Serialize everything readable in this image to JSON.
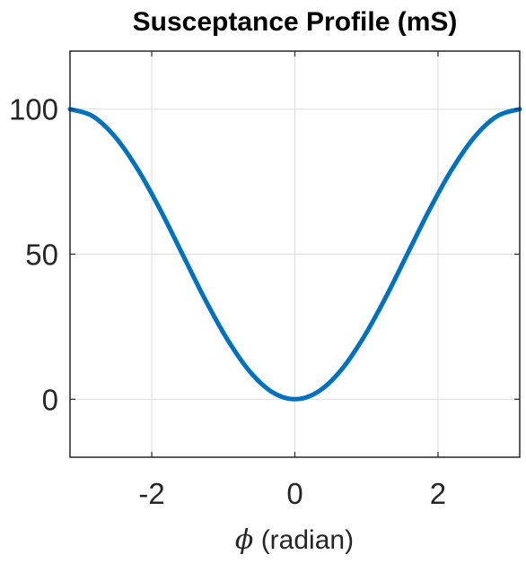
{
  "chart_data": {
    "type": "line",
    "title": "Susceptance Profile (mS)",
    "xlabel_symbol": "ϕ",
    "xlabel_text": " (radian)",
    "ylabel": "",
    "xlim": [
      -3.14159,
      3.14159
    ],
    "ylim": [
      -20,
      120
    ],
    "xticks": [
      -2,
      0,
      2
    ],
    "xtick_labels": [
      "-2",
      "0",
      "2"
    ],
    "yticks": [
      0,
      50,
      100
    ],
    "ytick_labels": [
      "0",
      "50",
      "100"
    ],
    "grid": true,
    "series": [
      {
        "color": "#0072BD",
        "x": [
          -3.1416,
          -2.8274,
          -2.5133,
          -2.1991,
          -1.885,
          -1.5708,
          -1.2566,
          -0.9425,
          -0.6283,
          -0.3142,
          0,
          0.3142,
          0.6283,
          0.9425,
          1.2566,
          1.5708,
          1.885,
          2.1991,
          2.5133,
          2.8274,
          3.1416
        ],
        "y": [
          100,
          97.6,
          90.5,
          79.4,
          65.5,
          50,
          34.5,
          20.6,
          9.5,
          2.4,
          0,
          2.4,
          9.5,
          20.6,
          34.5,
          50,
          65.5,
          79.4,
          90.5,
          97.6,
          100
        ]
      }
    ]
  }
}
